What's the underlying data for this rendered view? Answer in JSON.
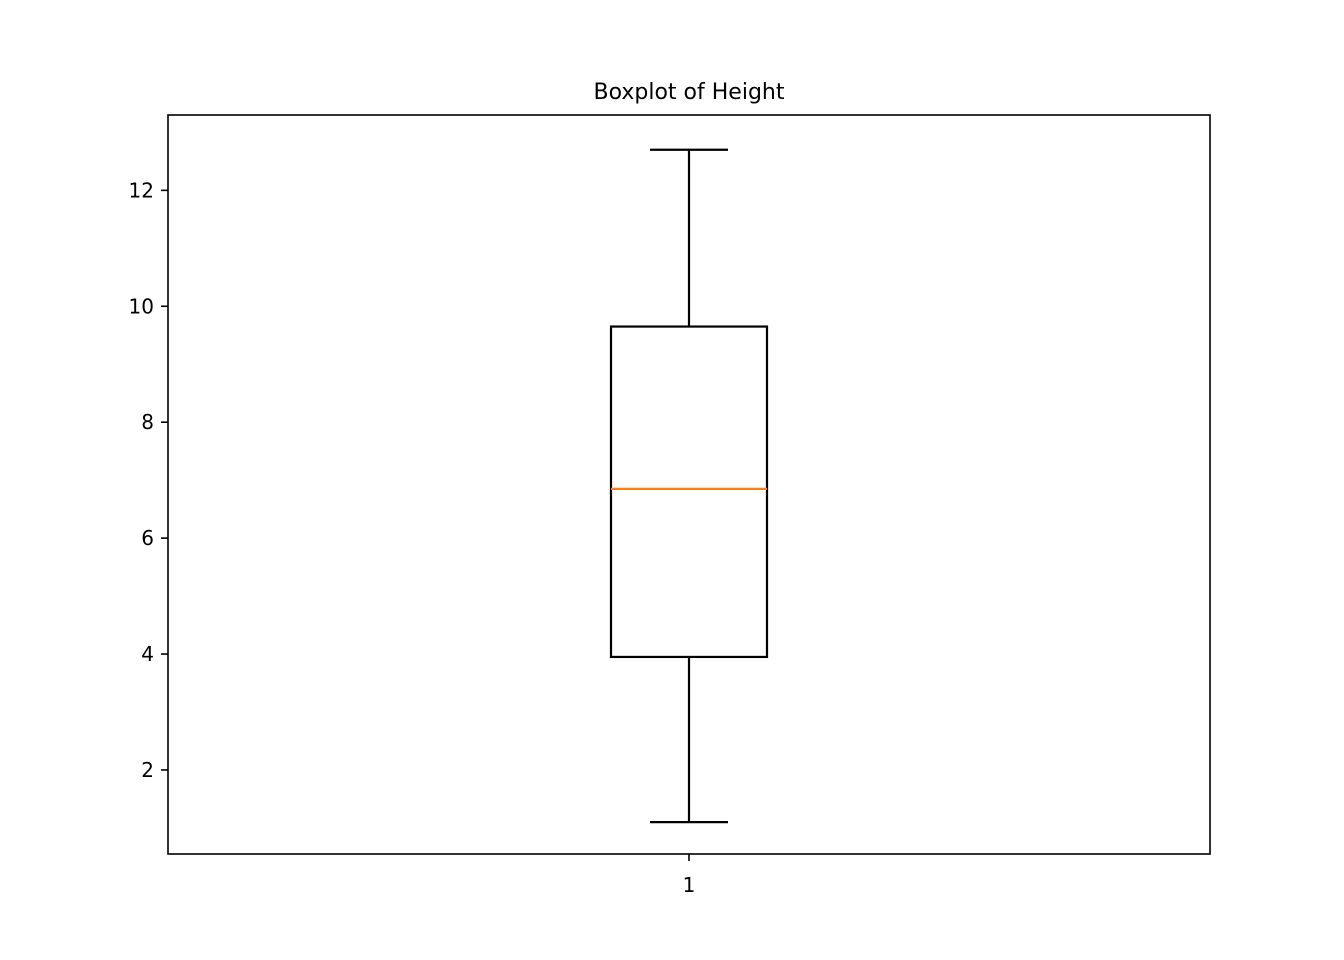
{
  "chart_data": {
    "type": "box",
    "title": "Boxplot of Height",
    "xlabel": "",
    "ylabel": "",
    "categories": [
      "1"
    ],
    "ylim": [
      0.55,
      13.3
    ],
    "yticks": [
      2,
      4,
      6,
      8,
      10,
      12
    ],
    "grid": false,
    "boxes": [
      {
        "category": "1",
        "whisker_low": 1.1,
        "q1": 3.95,
        "median": 6.85,
        "q3": 9.65,
        "whisker_high": 12.7
      }
    ],
    "colors": {
      "box": "#000000",
      "median": "#ff7f0e"
    }
  }
}
